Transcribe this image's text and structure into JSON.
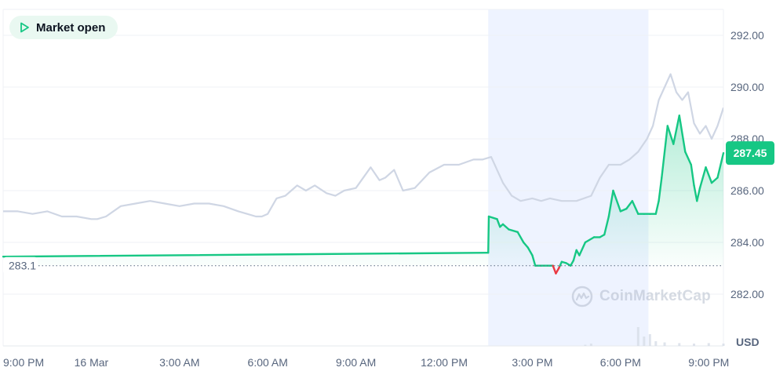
{
  "status_badge": {
    "label": "Market open",
    "icon": "play-icon"
  },
  "watermark": {
    "text": "CoinMarketCap",
    "icon": "coinmarketcap-logo-icon"
  },
  "colors": {
    "up": "#16c784",
    "down": "#ea3943",
    "compare_line": "#cfd6e4",
    "highlight_band": "#eef3ff",
    "grid": "#eff2f5",
    "badge_bg": "#e9f8f1"
  },
  "chart_data": {
    "type": "line",
    "title": "",
    "xlabel": "",
    "ylabel": "",
    "unit": "USD",
    "ylim": [
      280,
      293
    ],
    "xlim": [
      0,
      24.5
    ],
    "y_ticks": [
      292.0,
      290.0,
      288.0,
      286.0,
      284.0,
      282.0
    ],
    "y_tick_labels": [
      "292.00",
      "290.00",
      "288.00",
      "286.00",
      "284.00",
      "282.00"
    ],
    "x_ticks": [
      0,
      3,
      6,
      9,
      12,
      15,
      18,
      21,
      24
    ],
    "x_tick_labels": [
      "9:00 PM",
      "16 Mar",
      "3:00 AM",
      "6:00 AM",
      "9:00 AM",
      "12:00 PM",
      "3:00 PM",
      "6:00 PM",
      "9:00 PM"
    ],
    "x_units": "hours since 9:00 PM (15 Mar)",
    "highlighted_range": [
      16.5,
      21.95
    ],
    "reference": {
      "value": 283.1,
      "label": "283.1",
      "style": "dotted"
    },
    "last_price": {
      "value": 287.45,
      "label": "287.45"
    },
    "grid": true,
    "series": [
      {
        "role": "price",
        "color_rule": "green above reference, red below",
        "x": [
          0,
          16.5,
          16.52,
          16.8,
          16.9,
          17.0,
          17.2,
          17.5,
          17.7,
          17.85,
          18.0,
          18.1,
          18.3,
          18.6,
          18.7,
          18.8,
          18.9,
          19.0,
          19.15,
          19.3,
          19.4,
          19.5,
          19.6,
          19.8,
          20.1,
          20.3,
          20.45,
          20.6,
          20.75,
          21.0,
          21.2,
          21.4,
          21.6,
          21.8,
          22.0,
          22.2,
          22.3,
          22.4,
          22.6,
          22.8,
          23.0,
          23.2,
          23.4,
          23.5,
          23.6,
          23.7,
          23.9,
          24.1,
          24.3,
          24.5
        ],
        "y": [
          283.45,
          283.6,
          285.0,
          284.9,
          284.6,
          284.7,
          284.5,
          284.4,
          284.0,
          283.8,
          283.5,
          283.1,
          283.1,
          283.1,
          283.1,
          282.8,
          283.0,
          283.25,
          283.2,
          283.1,
          283.3,
          283.7,
          283.5,
          284.0,
          284.2,
          284.2,
          284.3,
          285.0,
          286.0,
          285.2,
          285.3,
          285.6,
          285.1,
          285.1,
          285.1,
          285.1,
          285.6,
          286.5,
          288.5,
          287.8,
          288.9,
          287.5,
          287.0,
          286.2,
          285.6,
          286.1,
          286.9,
          286.3,
          286.5,
          287.45
        ]
      },
      {
        "role": "comparison",
        "color_rule": "light gray",
        "x": [
          0,
          0.5,
          1.0,
          1.5,
          2.0,
          2.5,
          3.0,
          3.2,
          3.5,
          4.0,
          4.5,
          5.0,
          5.5,
          6.0,
          6.5,
          7.0,
          7.5,
          8.0,
          8.3,
          8.6,
          8.8,
          9.0,
          9.3,
          9.6,
          9.8,
          10.0,
          10.3,
          10.6,
          11.0,
          11.3,
          11.6,
          12.0,
          12.5,
          12.8,
          13.0,
          13.3,
          13.6,
          14.0,
          14.5,
          15.0,
          15.5,
          16.0,
          16.3,
          16.6,
          17.0,
          17.3,
          17.6,
          18.0,
          18.3,
          18.6,
          19.0,
          19.5,
          20.0,
          20.3,
          20.6,
          21.0,
          21.3,
          21.6,
          21.9,
          22.1,
          22.3,
          22.5,
          22.7,
          22.9,
          23.1,
          23.3,
          23.5,
          23.7,
          23.9,
          24.1,
          24.3,
          24.5
        ],
        "y": [
          285.2,
          285.2,
          285.1,
          285.2,
          285.0,
          285.0,
          284.9,
          284.9,
          285.0,
          285.4,
          285.5,
          285.6,
          285.5,
          285.4,
          285.5,
          285.5,
          285.4,
          285.2,
          285.1,
          285.0,
          285.0,
          285.1,
          285.7,
          285.8,
          286.0,
          286.2,
          286.0,
          286.2,
          285.9,
          285.8,
          286.0,
          286.1,
          286.9,
          286.4,
          286.5,
          286.8,
          286.0,
          286.1,
          286.7,
          287.0,
          287.0,
          287.2,
          287.2,
          287.3,
          286.3,
          285.8,
          285.6,
          285.7,
          285.6,
          285.7,
          285.6,
          285.6,
          285.8,
          286.5,
          287.0,
          287.0,
          287.2,
          287.5,
          288.0,
          288.5,
          289.5,
          290.0,
          290.5,
          289.8,
          289.5,
          289.8,
          288.6,
          288.2,
          288.5,
          288.0,
          288.5,
          289.2
        ]
      }
    ],
    "volume": {
      "x": [
        19.8,
        20.0,
        21.6,
        21.8,
        22.0,
        22.2,
        22.5,
        23.0,
        23.5,
        24.0,
        24.5
      ],
      "values": [
        0.05,
        0.1,
        0.8,
        0.4,
        0.5,
        0.2,
        0.15,
        0.12,
        0.1,
        0.12,
        0.1
      ]
    }
  }
}
